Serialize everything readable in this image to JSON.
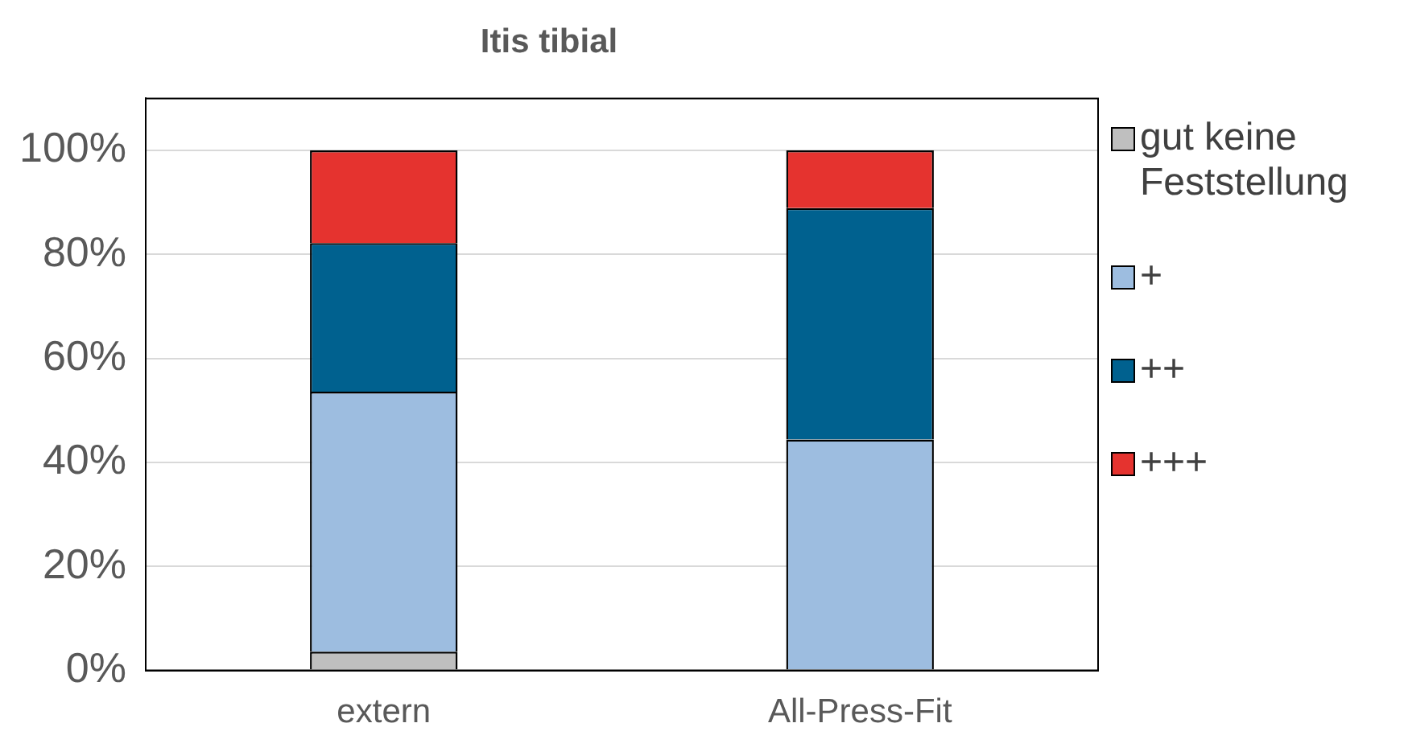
{
  "chart_data": {
    "type": "bar",
    "title": "Itis tibial",
    "categories": [
      "extern",
      "All-Press-Fit"
    ],
    "stacked": true,
    "series": [
      {
        "name": "gut keine Feststellung",
        "color": "#bfbfbf",
        "values": [
          3.6,
          0
        ]
      },
      {
        "name": "+",
        "color": "#9dbde0",
        "values": [
          50,
          44.4
        ]
      },
      {
        "name": "++",
        "color": "#00618f",
        "values": [
          28.6,
          44.5
        ]
      },
      {
        "name": "+++",
        "color": "#e5332f",
        "values": [
          17.8,
          11.1
        ]
      }
    ],
    "ylim": [
      0,
      110
    ],
    "yticks": [
      {
        "value": 0,
        "label": "0%"
      },
      {
        "value": 20,
        "label": "20%"
      },
      {
        "value": 40,
        "label": "40%"
      },
      {
        "value": 60,
        "label": "60%"
      },
      {
        "value": 80,
        "label": "80%"
      },
      {
        "value": 100,
        "label": "100%"
      }
    ],
    "grid": "y",
    "legend": "right"
  }
}
